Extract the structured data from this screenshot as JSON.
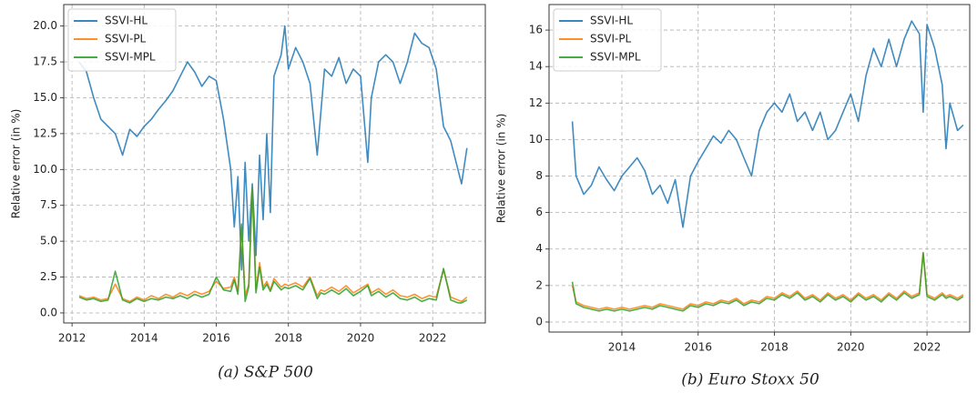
{
  "chart_data": [
    {
      "type": "line",
      "ylabel": "Relative error (in %)",
      "caption": "(a) S&P 500",
      "legend": "upper left",
      "grid": true,
      "xlim": [
        2011.77,
        2023.46
      ],
      "ylim": [
        -0.7,
        21.5
      ],
      "xticks": [
        2012,
        2014,
        2016,
        2018,
        2020,
        2022
      ],
      "yticks": [
        {
          "value": 0,
          "label": "0.0"
        },
        2.5,
        {
          "value": 5,
          "label": "5.0"
        },
        7.5,
        {
          "value": 10,
          "label": "10.0"
        },
        12.5,
        {
          "value": 15,
          "label": "15.0"
        },
        17.5,
        {
          "value": 20,
          "label": "20.0"
        }
      ],
      "x": [
        2012.2,
        2012.4,
        2012.6,
        2012.8,
        2013.0,
        2013.2,
        2013.4,
        2013.6,
        2013.8,
        2014.0,
        2014.2,
        2014.4,
        2014.6,
        2014.8,
        2015.0,
        2015.2,
        2015.4,
        2015.6,
        2015.8,
        2016.0,
        2016.2,
        2016.4,
        2016.5,
        2016.6,
        2016.7,
        2016.8,
        2016.9,
        2017.0,
        2017.1,
        2017.2,
        2017.3,
        2017.4,
        2017.5,
        2017.6,
        2017.8,
        2017.9,
        2018.0,
        2018.2,
        2018.4,
        2018.6,
        2018.8,
        2018.9,
        2019.0,
        2019.2,
        2019.4,
        2019.6,
        2019.8,
        2020.0,
        2020.2,
        2020.3,
        2020.5,
        2020.7,
        2020.9,
        2021.1,
        2021.3,
        2021.5,
        2021.7,
        2021.9,
        2022.1,
        2022.3,
        2022.5,
        2022.7,
        2022.8,
        2022.95
      ],
      "series": [
        {
          "name": "SSVI-HL",
          "color": "#1f77b4",
          "values": [
            17.5,
            16.8,
            15.0,
            13.5,
            13.0,
            12.5,
            11.0,
            12.8,
            12.3,
            13.0,
            13.5,
            14.2,
            14.8,
            15.5,
            16.5,
            17.5,
            16.8,
            15.8,
            16.5,
            16.2,
            13.5,
            10.0,
            6.0,
            9.5,
            3.0,
            10.5,
            5.0,
            9.0,
            4.0,
            11.0,
            6.5,
            12.5,
            7.0,
            16.5,
            18.0,
            20.0,
            17.0,
            18.5,
            17.5,
            16.0,
            11.0,
            14.0,
            17.0,
            16.5,
            17.8,
            16.0,
            17.0,
            16.5,
            10.5,
            15.0,
            17.5,
            18.0,
            17.5,
            16.0,
            17.5,
            19.5,
            18.8,
            18.5,
            17.0,
            13.0,
            12.0,
            10.0,
            9.0,
            11.5
          ]
        },
        {
          "name": "SSVI-PL",
          "color": "#ff7f0e",
          "values": [
            1.2,
            1.0,
            1.1,
            0.9,
            1.0,
            2.0,
            1.0,
            0.8,
            1.1,
            0.9,
            1.2,
            1.0,
            1.3,
            1.1,
            1.4,
            1.2,
            1.5,
            1.3,
            1.5,
            2.2,
            1.7,
            1.8,
            2.5,
            1.5,
            6.0,
            1.2,
            2.0,
            8.7,
            1.6,
            3.5,
            1.8,
            2.2,
            1.6,
            2.4,
            1.8,
            2.0,
            1.9,
            2.1,
            1.8,
            2.5,
            1.2,
            1.6,
            1.5,
            1.8,
            1.5,
            1.9,
            1.4,
            1.7,
            2.0,
            1.4,
            1.7,
            1.3,
            1.6,
            1.2,
            1.1,
            1.3,
            1.0,
            1.2,
            1.1,
            3.0,
            1.1,
            0.9,
            0.8,
            1.1
          ]
        },
        {
          "name": "SSVI-MPL",
          "color": "#2ca02c",
          "values": [
            1.1,
            0.9,
            1.0,
            0.8,
            0.9,
            2.9,
            0.9,
            0.7,
            1.0,
            0.8,
            1.0,
            0.9,
            1.1,
            1.0,
            1.2,
            1.0,
            1.3,
            1.1,
            1.3,
            2.5,
            1.6,
            1.5,
            2.3,
            1.3,
            6.2,
            0.8,
            1.8,
            8.7,
            1.4,
            3.2,
            1.6,
            2.0,
            1.5,
            2.2,
            1.6,
            1.8,
            1.7,
            1.9,
            1.6,
            2.4,
            1.0,
            1.4,
            1.3,
            1.6,
            1.3,
            1.7,
            1.2,
            1.5,
            1.9,
            1.2,
            1.5,
            1.1,
            1.4,
            1.0,
            0.9,
            1.1,
            0.8,
            1.0,
            0.9,
            3.1,
            0.9,
            0.7,
            0.7,
            0.9
          ]
        }
      ]
    },
    {
      "type": "line",
      "ylabel": "Relative error (in %)",
      "caption": "(b) Euro Stoxx 50",
      "legend": "upper left",
      "grid": true,
      "xlim": [
        2012.09,
        2023.12
      ],
      "ylim": [
        -0.55,
        17.4
      ],
      "xticks": [
        2014,
        2016,
        2018,
        2020,
        2022
      ],
      "yticks": [
        0,
        2,
        4,
        6,
        8,
        10,
        12,
        14,
        16
      ],
      "x": [
        2012.7,
        2012.8,
        2013.0,
        2013.2,
        2013.4,
        2013.6,
        2013.8,
        2014.0,
        2014.2,
        2014.4,
        2014.6,
        2014.8,
        2015.0,
        2015.2,
        2015.4,
        2015.6,
        2015.8,
        2016.0,
        2016.2,
        2016.4,
        2016.6,
        2016.8,
        2017.0,
        2017.2,
        2017.4,
        2017.6,
        2017.8,
        2018.0,
        2018.2,
        2018.4,
        2018.6,
        2018.8,
        2019.0,
        2019.2,
        2019.4,
        2019.6,
        2019.8,
        2020.0,
        2020.2,
        2020.4,
        2020.6,
        2020.8,
        2021.0,
        2021.2,
        2021.4,
        2021.6,
        2021.8,
        2021.9,
        2022.0,
        2022.2,
        2022.4,
        2022.5,
        2022.6,
        2022.8,
        2022.95
      ],
      "series": [
        {
          "name": "SSVI-HL",
          "color": "#1f77b4",
          "values": [
            11.0,
            8.0,
            7.0,
            7.5,
            8.5,
            7.8,
            7.2,
            8.0,
            8.5,
            9.0,
            8.3,
            7.0,
            7.5,
            6.5,
            7.8,
            5.2,
            8.0,
            8.8,
            9.5,
            10.2,
            9.8,
            10.5,
            10.0,
            9.0,
            8.0,
            10.5,
            11.5,
            12.0,
            11.5,
            12.5,
            11.0,
            11.5,
            10.5,
            11.5,
            10.0,
            10.5,
            11.5,
            12.5,
            11.0,
            13.5,
            15.0,
            14.0,
            15.5,
            14.0,
            15.5,
            16.5,
            15.8,
            11.5,
            16.3,
            15.0,
            13.0,
            9.5,
            12.0,
            10.5,
            10.8
          ]
        },
        {
          "name": "SSVI-PL",
          "color": "#ff7f0e",
          "values": [
            2.0,
            1.1,
            0.9,
            0.8,
            0.7,
            0.8,
            0.7,
            0.8,
            0.7,
            0.8,
            0.9,
            0.8,
            1.0,
            0.9,
            0.8,
            0.7,
            1.0,
            0.9,
            1.1,
            1.0,
            1.2,
            1.1,
            1.3,
            1.0,
            1.2,
            1.1,
            1.4,
            1.3,
            1.6,
            1.4,
            1.7,
            1.3,
            1.5,
            1.2,
            1.6,
            1.3,
            1.5,
            1.2,
            1.6,
            1.3,
            1.5,
            1.2,
            1.6,
            1.3,
            1.7,
            1.4,
            1.6,
            3.8,
            1.5,
            1.3,
            1.6,
            1.4,
            1.5,
            1.3,
            1.5
          ]
        },
        {
          "name": "SSVI-MPL",
          "color": "#2ca02c",
          "values": [
            2.2,
            1.0,
            0.8,
            0.7,
            0.6,
            0.7,
            0.6,
            0.7,
            0.6,
            0.7,
            0.8,
            0.7,
            0.9,
            0.8,
            0.7,
            0.6,
            0.9,
            0.8,
            1.0,
            0.9,
            1.1,
            1.0,
            1.2,
            0.9,
            1.1,
            1.0,
            1.3,
            1.2,
            1.5,
            1.3,
            1.6,
            1.2,
            1.4,
            1.1,
            1.5,
            1.2,
            1.4,
            1.1,
            1.5,
            1.2,
            1.4,
            1.1,
            1.5,
            1.2,
            1.6,
            1.3,
            1.5,
            3.8,
            1.4,
            1.2,
            1.5,
            1.3,
            1.4,
            1.2,
            1.4
          ]
        }
      ]
    }
  ]
}
